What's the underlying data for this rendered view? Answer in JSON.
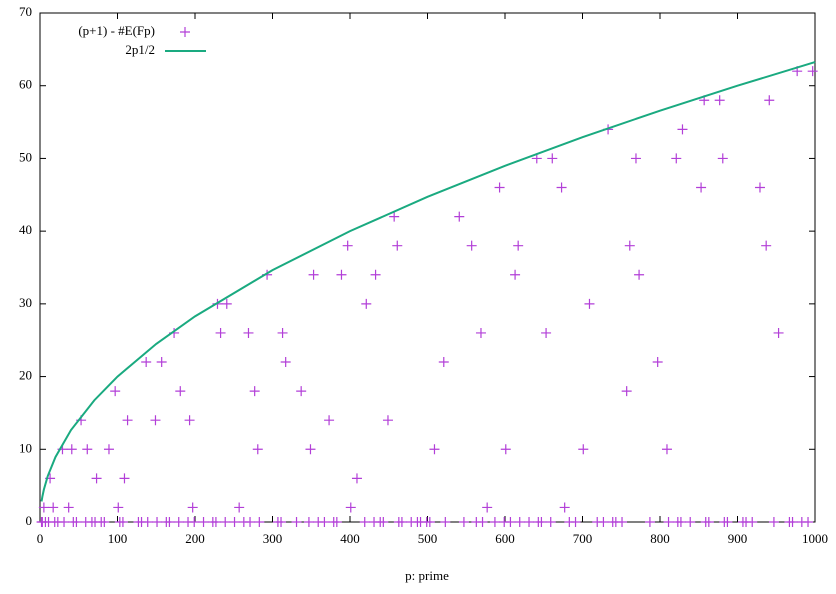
{
  "chart_data": {
    "type": "scatter",
    "xlabel": "p: prime",
    "xlim": [
      0,
      1000
    ],
    "ylim": [
      0,
      70
    ],
    "xticks": [
      0,
      100,
      200,
      300,
      400,
      500,
      600,
      700,
      800,
      900,
      1000
    ],
    "yticks": [
      0,
      10,
      20,
      30,
      40,
      50,
      60,
      70
    ],
    "grid": false,
    "legend": "top-left",
    "series": [
      {
        "name": "(p+1) - #E(Fp)",
        "color": "#b23fd8",
        "style": "points",
        "x": [
          2,
          3,
          5,
          7,
          11,
          13,
          17,
          19,
          23,
          29,
          31,
          37,
          41,
          43,
          47,
          53,
          59,
          61,
          67,
          71,
          73,
          79,
          83,
          89,
          97,
          101,
          103,
          107,
          109,
          113,
          127,
          131,
          137,
          139,
          149,
          151,
          157,
          163,
          167,
          173,
          179,
          181,
          191,
          193,
          197,
          199,
          211,
          223,
          227,
          229,
          233,
          239,
          241,
          251,
          257,
          263,
          269,
          271,
          277,
          281,
          283,
          293,
          307,
          311,
          313,
          317,
          331,
          337,
          347,
          349,
          353,
          359,
          367,
          373,
          379,
          383,
          389,
          397,
          401,
          409,
          419,
          421,
          431,
          433,
          439,
          443,
          449,
          457,
          461,
          463,
          467,
          479,
          487,
          491,
          499,
          503,
          509,
          521,
          523,
          541,
          547,
          557,
          563,
          569,
          571,
          577,
          587,
          593,
          599,
          601,
          607,
          613,
          617,
          619,
          631,
          641,
          643,
          647,
          653,
          659,
          661,
          673,
          677,
          683,
          691,
          701,
          709,
          719,
          727,
          733,
          739,
          743,
          751,
          757,
          761,
          769,
          773,
          787,
          797,
          809,
          811,
          821,
          823,
          827,
          829,
          839,
          853,
          857,
          859,
          863,
          877,
          881,
          883,
          887,
          907,
          911,
          919,
          929,
          937,
          941,
          947,
          953,
          967,
          971,
          977,
          983,
          991,
          997
        ],
        "values": [
          0,
          0,
          2,
          0,
          0,
          6,
          2,
          0,
          0,
          10,
          0,
          2,
          10,
          0,
          0,
          14,
          0,
          10,
          0,
          0,
          6,
          0,
          0,
          10,
          18,
          2,
          0,
          0,
          6,
          14,
          0,
          0,
          22,
          0,
          14,
          0,
          22,
          0,
          0,
          26,
          0,
          18,
          0,
          14,
          2,
          0,
          0,
          0,
          0,
          30,
          26,
          0,
          30,
          0,
          2,
          0,
          26,
          0,
          18,
          10,
          0,
          34,
          0,
          0,
          26,
          22,
          0,
          18,
          0,
          10,
          34,
          0,
          0,
          14,
          0,
          0,
          34,
          38,
          2,
          6,
          0,
          30,
          0,
          34,
          0,
          0,
          14,
          42,
          38,
          0,
          0,
          0,
          0,
          0,
          0,
          0,
          10,
          22,
          0,
          42,
          0,
          38,
          0,
          26,
          0,
          2,
          0,
          46,
          0,
          10,
          0,
          34,
          38,
          0,
          0,
          50,
          0,
          0,
          26,
          0,
          50,
          46,
          2,
          0,
          0,
          10,
          30,
          0,
          0,
          54,
          0,
          0,
          0,
          18,
          38,
          50,
          34,
          0,
          22,
          10,
          0,
          50,
          0,
          0,
          54,
          0,
          46,
          58,
          0,
          0,
          58,
          50,
          0,
          0,
          0,
          0,
          0,
          46,
          38,
          58,
          0,
          26,
          0,
          0,
          62,
          0,
          0,
          62
        ]
      },
      {
        "name": "2p1/2",
        "color": "#1aaa80",
        "style": "line",
        "x": [
          2,
          3,
          5,
          10,
          20,
          40,
          70,
          100,
          150,
          200,
          300,
          400,
          500,
          600,
          700,
          800,
          900,
          1000
        ],
        "values": [
          2.83,
          3.46,
          4.47,
          6.32,
          8.94,
          12.65,
          16.73,
          20,
          24.49,
          28.28,
          34.64,
          40,
          44.72,
          48.99,
          52.92,
          56.57,
          60,
          63.25
        ]
      }
    ]
  }
}
